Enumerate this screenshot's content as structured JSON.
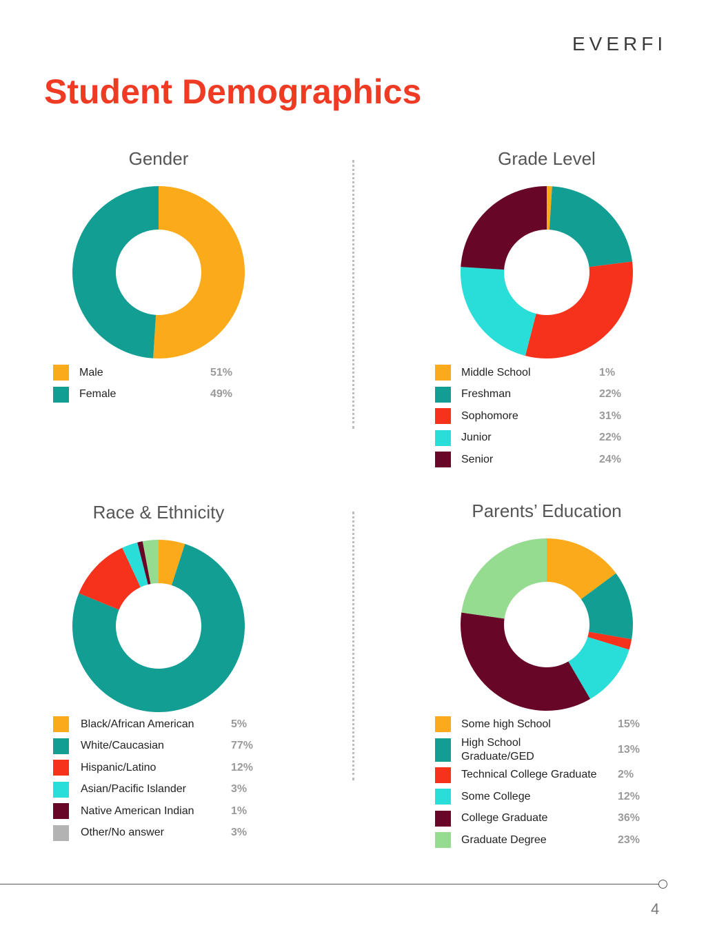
{
  "logo": "EVERFI",
  "title": "Student Demographics",
  "page_number": "4",
  "colors": {
    "title": "#ef3b23",
    "amber": "#fbaa19",
    "teal": "#139e94",
    "red": "#f6321c",
    "cyan": "#29ddd8",
    "maroon": "#680628",
    "gray": "#b3b3b3",
    "light_green": "#95dc91"
  },
  "chart_data": [
    {
      "type": "pie",
      "donut": true,
      "title": "Gender",
      "categories": [
        "Male",
        "Female"
      ],
      "values": [
        51,
        49
      ],
      "labels": [
        "51%",
        "49%"
      ],
      "colors": [
        "#fbaa19",
        "#139e94"
      ]
    },
    {
      "type": "pie",
      "donut": true,
      "title": "Grade Level",
      "categories": [
        "Middle School",
        "Freshman",
        "Sophomore",
        "Junior",
        "Senior"
      ],
      "values": [
        1,
        22,
        31,
        22,
        24
      ],
      "labels": [
        "1%",
        "22%",
        "31%",
        "22%",
        "24%"
      ],
      "colors": [
        "#fbaa19",
        "#139e94",
        "#f6321c",
        "#29ddd8",
        "#680628"
      ]
    },
    {
      "type": "pie",
      "donut": true,
      "title": "Race & Ethnicity",
      "categories": [
        "Black/African American",
        "White/Caucasian",
        "Hispanic/Latino",
        "Asian/Pacific Islander",
        "Native American Indian",
        "Other/No answer"
      ],
      "values": [
        5,
        77,
        12,
        3,
        1,
        3
      ],
      "labels": [
        "5%",
        "77%",
        "12%",
        "3%",
        "1%",
        "3%"
      ],
      "colors": [
        "#fbaa19",
        "#139e94",
        "#f6321c",
        "#29ddd8",
        "#680628",
        "#b3b3b3"
      ],
      "slice_colors": [
        "#fbaa19",
        "#139e94",
        "#f6321c",
        "#29ddd8",
        "#680628",
        "#95dc91"
      ]
    },
    {
      "type": "pie",
      "donut": true,
      "title": "Parents’ Education",
      "categories": [
        "Some high School",
        "High School Graduate/GED",
        "Technical College Graduate",
        "Some College",
        "College Graduate",
        "Graduate Degree"
      ],
      "values": [
        15,
        13,
        2,
        12,
        36,
        23
      ],
      "labels": [
        "15%",
        "13%",
        "2%",
        "12%",
        "36%",
        "23%"
      ],
      "colors": [
        "#fbaa19",
        "#139e94",
        "#f6321c",
        "#29ddd8",
        "#680628",
        "#95dc91"
      ]
    }
  ]
}
